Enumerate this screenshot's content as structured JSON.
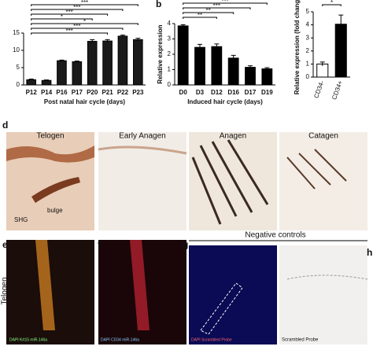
{
  "charts": [
    {
      "type": "bar",
      "panel": null,
      "xlabel": "Post natal hair cycle (days)",
      "categories": [
        "P12",
        "P14",
        "P16",
        "P17",
        "P20",
        "P21",
        "P22",
        "P23"
      ],
      "values": [
        1.5,
        1.3,
        7,
        6.7,
        12.6,
        12.7,
        14.1,
        13.1
      ],
      "errors": [
        0.2,
        0.15,
        0.2,
        0.2,
        0.5,
        0.4,
        0.3,
        0.4
      ],
      "colors": [
        "#1a1a1a"
      ],
      "ylim": [
        0,
        15
      ],
      "yticks": [
        0,
        5,
        10,
        15
      ],
      "brackets": [
        "***",
        "***",
        "***",
        "*",
        "*",
        "***",
        "***"
      ]
    },
    {
      "type": "bar",
      "panel": "b",
      "ylabel": "Relative expression",
      "xlabel": "Induced hair cycle (days)",
      "categories": [
        "D0",
        "D3",
        "D12",
        "D16",
        "D17",
        "D19"
      ],
      "values": [
        3.85,
        2.45,
        2.5,
        1.75,
        1.15,
        1.05
      ],
      "errors": [
        0.08,
        0.2,
        0.17,
        0.18,
        0.1,
        0.08
      ],
      "colors": [
        "#000000"
      ],
      "ylim": [
        0,
        4
      ],
      "yticks": [
        0,
        1,
        2,
        3,
        4
      ],
      "brackets": [
        "***",
        "***",
        "**",
        "**"
      ]
    },
    {
      "type": "bar",
      "panel": null,
      "ylabel": "Relative expression (fold change)",
      "categories": [
        "CD34-",
        "CD34+"
      ],
      "values": [
        1,
        4.05
      ],
      "errors": [
        0.15,
        0.7
      ],
      "colors": [
        "#ffffff",
        "#000000"
      ],
      "ylim": [
        0,
        5
      ],
      "yticks": [
        0,
        1,
        2,
        3,
        4,
        5
      ],
      "brackets": [
        "*"
      ]
    }
  ],
  "images": {
    "d": "d",
    "titles": [
      "Telogen",
      "Early Anagen",
      "Anagen",
      "Catagen"
    ],
    "bulge": "bulge",
    "shg": "SHG",
    "e": "e",
    "f": "f",
    "g": "g",
    "h": "h",
    "negative": "Negative controls",
    "telogen": "Telogen",
    "stain_e": "DAPI Krt15 miR-146a",
    "stain_f": "DAPI CD34 miR-146a",
    "stain_g": "DAPI Scrambled Probe",
    "stain_h": "Scrambled Probe"
  }
}
